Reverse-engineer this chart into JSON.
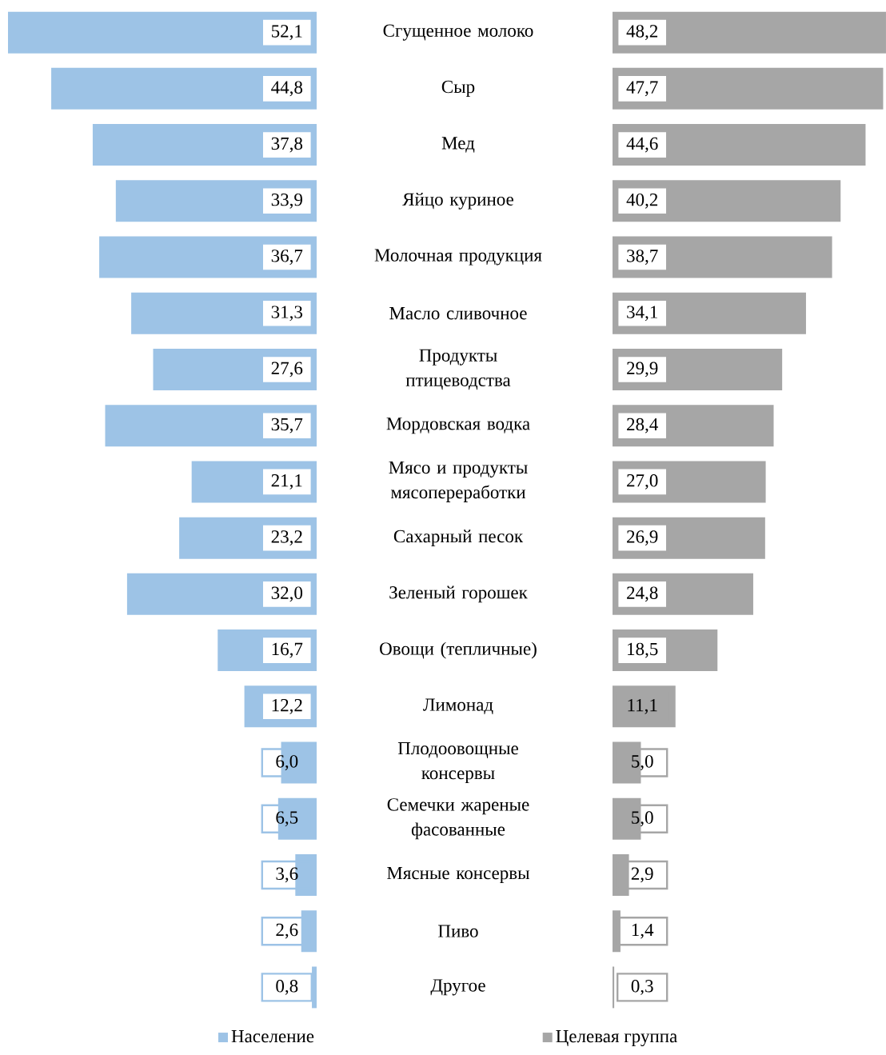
{
  "chart_data": [
    {
      "type": "bar",
      "orientation": "horizontal",
      "categories": [
        "Сгущенное молоко",
        "Сыр",
        "Мед",
        "Яйцо куриное",
        "Молочная продукция",
        "Масло сливочное",
        "Продукты птицеводства",
        "Мордовская водка",
        "Мясо и продукты мясопереработки",
        "Сахарный песок",
        "Зеленый горошек",
        "Овощи (тепличные)",
        "Лимонад",
        "Плодоовощные консервы",
        "Семечки жареные фасованные",
        "Мясные консервы",
        "Пиво",
        "Другое"
      ],
      "series": [
        {
          "name": "Население",
          "color": "#9dc3e6",
          "values": [
            52.1,
            44.8,
            37.8,
            33.9,
            36.7,
            31.3,
            27.6,
            35.7,
            21.1,
            23.2,
            32.0,
            16.7,
            12.2,
            6.0,
            6.5,
            3.6,
            2.6,
            0.8
          ],
          "value_labels": [
            "52,1",
            "44,8",
            "37,8",
            "33,9",
            "36,7",
            "31,3",
            "27,6",
            "35,7",
            "21,1",
            "23,2",
            "32,0",
            "16,7",
            "12,2",
            "6,0",
            "6,5",
            "3,6",
            "2,6",
            "0,8"
          ]
        }
      ],
      "legend": "bottom",
      "tick_labels": "y"
    },
    {
      "type": "bar",
      "orientation": "horizontal",
      "categories": [
        null,
        null,
        null,
        null,
        null,
        null,
        null,
        null,
        null,
        null,
        null,
        null,
        null,
        null,
        null,
        null,
        null,
        null
      ],
      "series": [
        {
          "name": "Целевая группа",
          "color": "#a6a6a6",
          "values": [
            48.2,
            47.7,
            44.6,
            40.2,
            38.7,
            34.1,
            29.9,
            28.4,
            27.0,
            26.9,
            24.8,
            18.5,
            11.1,
            5.0,
            5.0,
            2.9,
            1.4,
            0.3
          ],
          "value_labels": [
            "48,2",
            "47,7",
            "44,6",
            "40,2",
            "38,7",
            "34,1",
            "29,9",
            "28,4",
            "27,0",
            "26,9",
            "24,8",
            "18,5",
            "11,1",
            "5,0",
            "5,0",
            "2,9",
            "1,4",
            "0,3"
          ]
        }
      ],
      "legend": "bottom",
      "tick_labels": false
    }
  ]
}
